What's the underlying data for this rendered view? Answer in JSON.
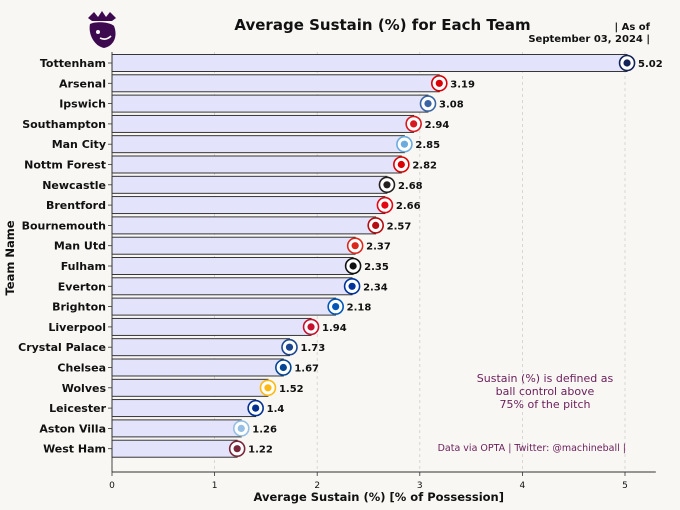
{
  "header": {
    "title": "Average Sustain (%) for Each Team",
    "as_of": "| As of\nSeptember 03, 2024 |"
  },
  "annotations": {
    "definition": [
      "Sustain (%) is defined as",
      "ball control above",
      "75% of the pitch"
    ],
    "source": "Data via OPTA | Twitter: @machineball |"
  },
  "colors": {
    "bar_fill": "#e3e3fb",
    "bar_edge": "#222222",
    "background": "#f8f7f3",
    "annotation": "#6b1e5a",
    "logo": "#3d0a4f"
  },
  "chart_data": {
    "type": "bar",
    "orientation": "horizontal",
    "title": "Average Sustain (%) for Each Team",
    "xlabel": "Average Sustain (%) [% of Possession]",
    "ylabel": "Team Name",
    "xlim": [
      0,
      5.3
    ],
    "xticks": [
      0,
      1,
      2,
      3,
      4,
      5
    ],
    "grid": "vertical dashed",
    "categories": [
      "Tottenham",
      "Arsenal",
      "Ipswich",
      "Southampton",
      "Man City",
      "Nottm Forest",
      "Newcastle",
      "Brentford",
      "Bournemouth",
      "Man Utd",
      "Fulham",
      "Everton",
      "Brighton",
      "Liverpool",
      "Crystal Palace",
      "Chelsea",
      "Wolves",
      "Leicester",
      "Aston Villa",
      "West Ham"
    ],
    "values": [
      5.02,
      3.19,
      3.08,
      2.94,
      2.85,
      2.82,
      2.68,
      2.66,
      2.57,
      2.37,
      2.35,
      2.34,
      2.18,
      1.94,
      1.73,
      1.67,
      1.52,
      1.4,
      1.26,
      1.22
    ],
    "value_labels": [
      "5.02",
      "3.19",
      "3.08",
      "2.94",
      "2.85",
      "2.82",
      "2.68",
      "2.66",
      "2.57",
      "2.37",
      "2.35",
      "2.34",
      "2.18",
      "1.94",
      "1.73",
      "1.67",
      "1.52",
      "1.4",
      "1.26",
      "1.22"
    ],
    "badge_colors": [
      "#132257",
      "#db0007",
      "#3a64a3",
      "#d71920",
      "#6cabdd",
      "#dd0000",
      "#241f20",
      "#e30613",
      "#b50e12",
      "#da291c",
      "#111111",
      "#003399",
      "#0057b8",
      "#c8102e",
      "#1b458f",
      "#034694",
      "#fdb913",
      "#003090",
      "#95bfe5",
      "#7a263a"
    ]
  }
}
